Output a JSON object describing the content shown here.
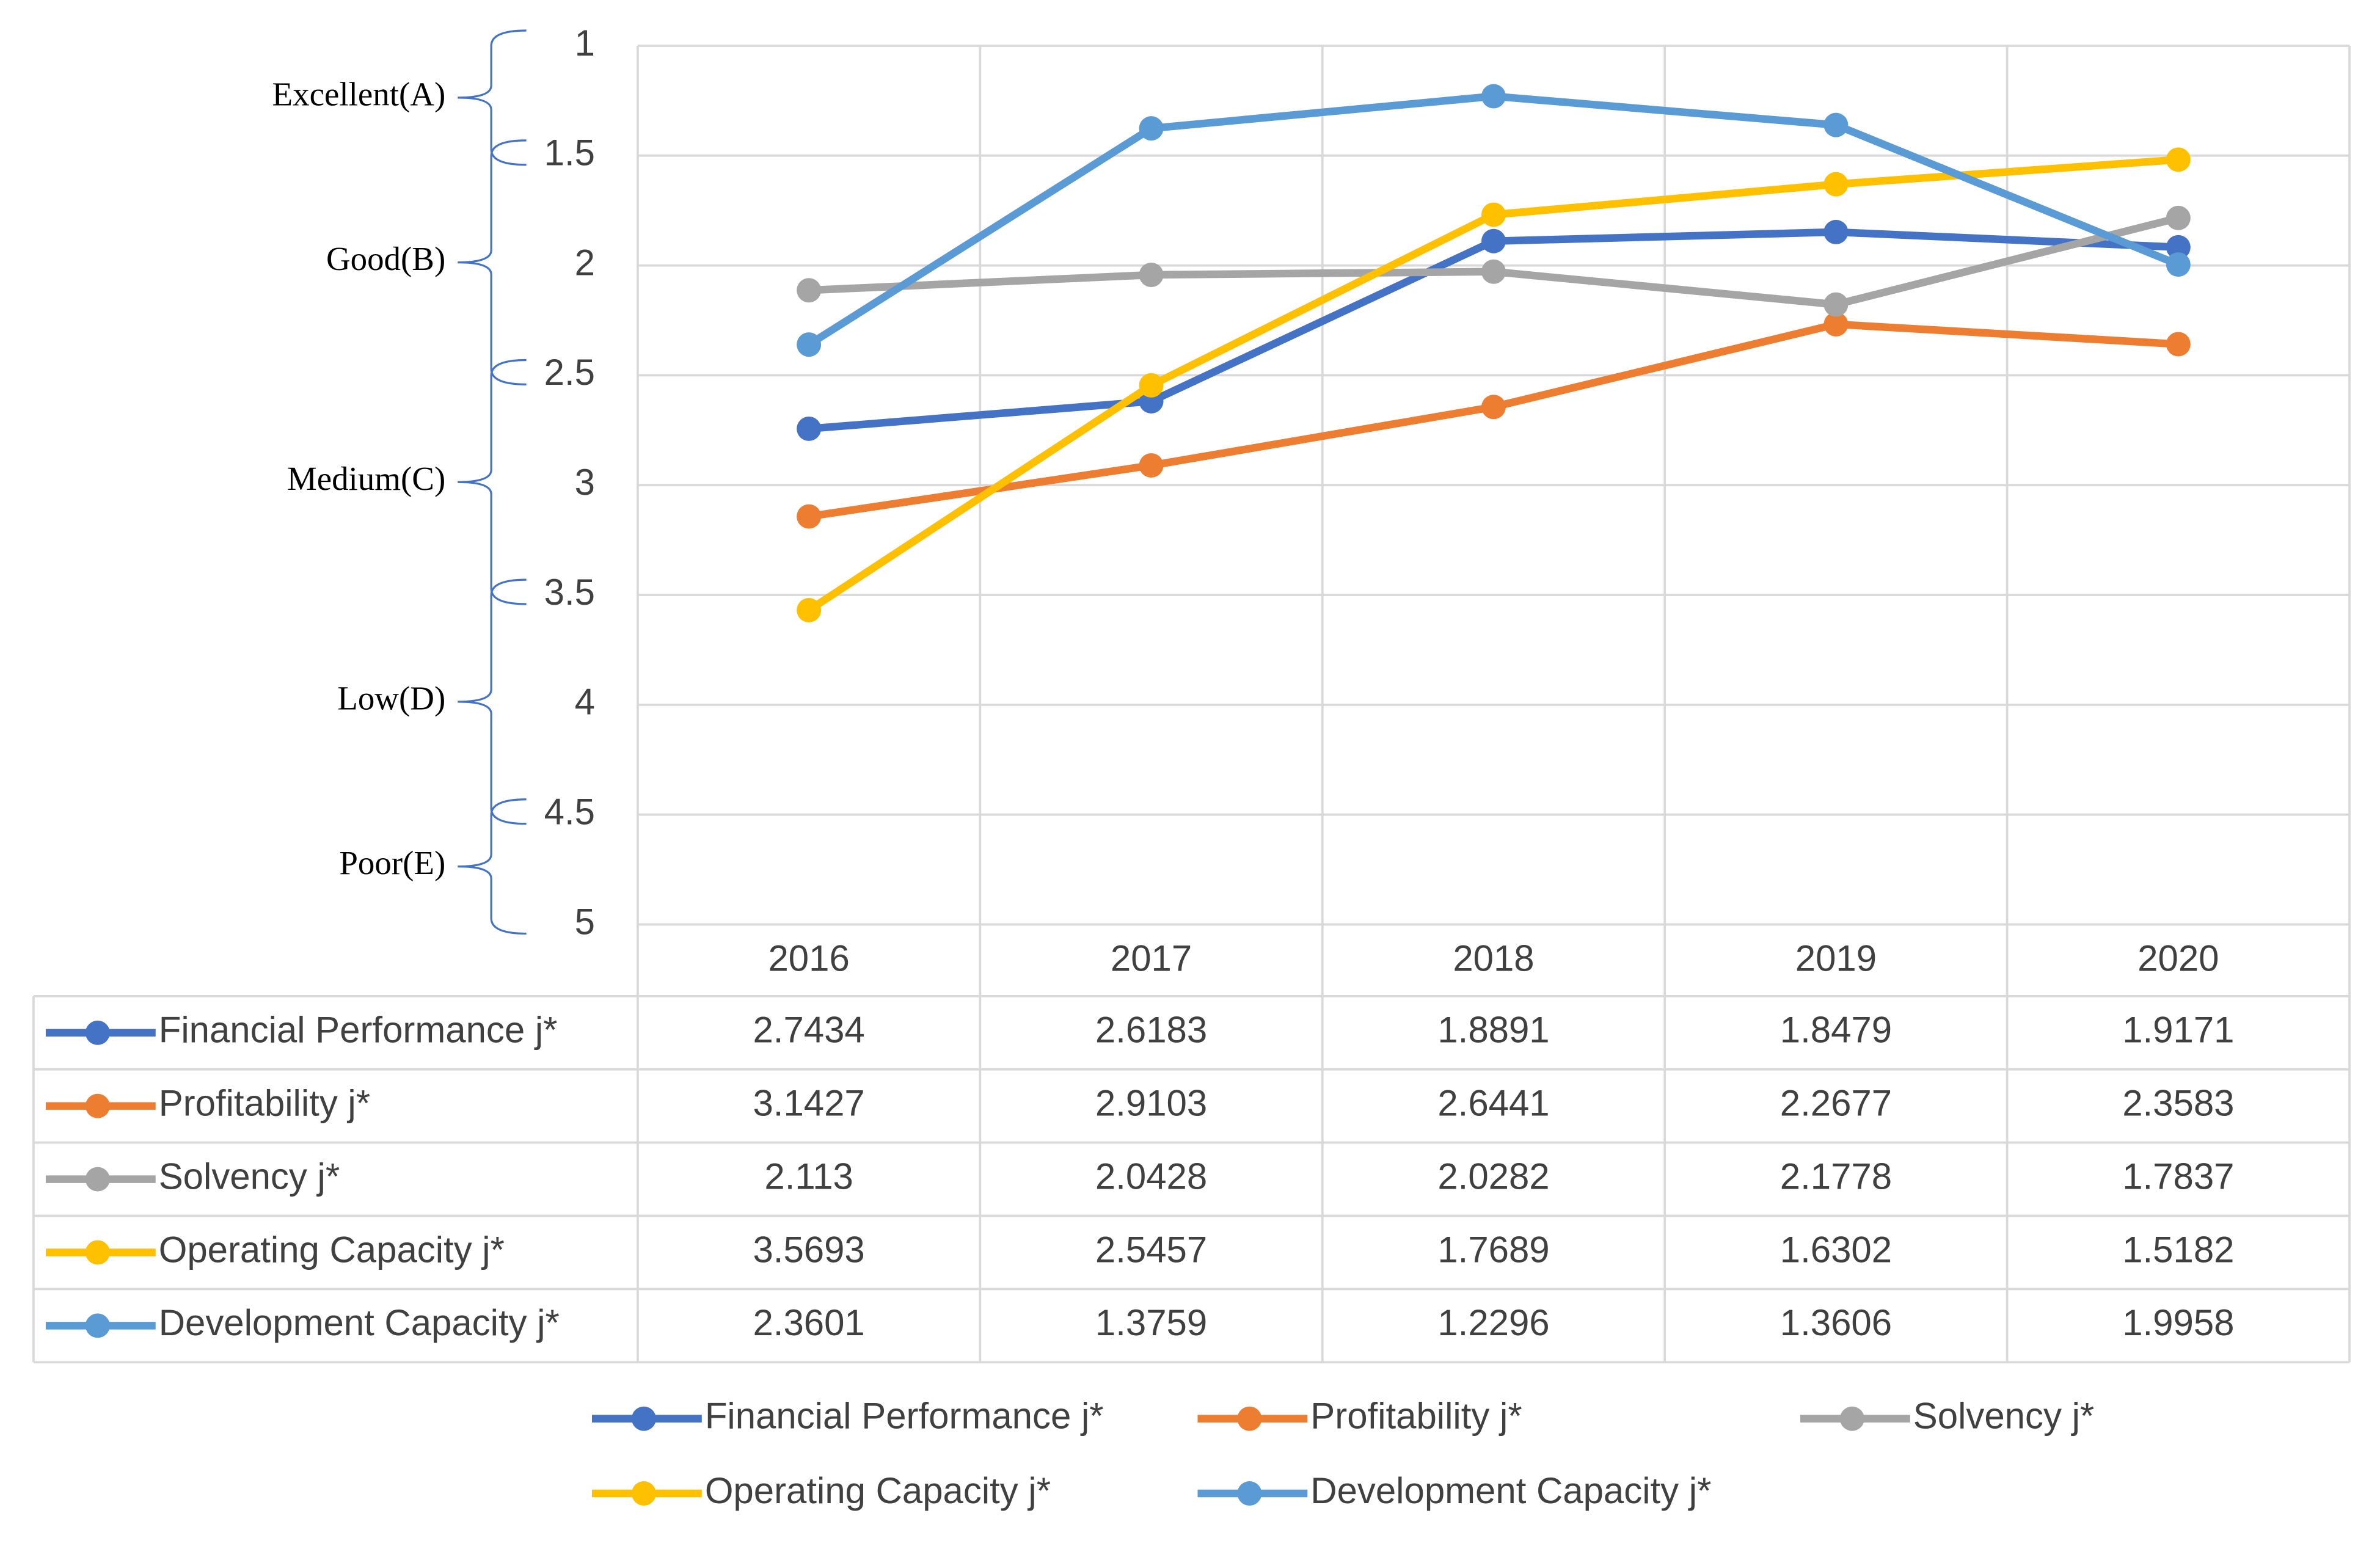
{
  "chart_data": {
    "type": "line",
    "categories": [
      "2016",
      "2017",
      "2018",
      "2019",
      "2020"
    ],
    "series": [
      {
        "name": "Financial Performance j*",
        "color": "#4472c4",
        "values": [
          2.7434,
          2.6183,
          1.8891,
          1.8479,
          1.9171
        ]
      },
      {
        "name": "Profitability j*",
        "color": "#ed7d31",
        "values": [
          3.1427,
          2.9103,
          2.6441,
          2.2677,
          2.3583
        ]
      },
      {
        "name": "Solvency j*",
        "color": "#a5a5a5",
        "values": [
          2.113,
          2.0428,
          2.0282,
          2.1778,
          1.7837
        ]
      },
      {
        "name": "Operating Capacity j*",
        "color": "#ffc000",
        "values": [
          3.5693,
          2.5457,
          1.7689,
          1.6302,
          1.5182
        ]
      },
      {
        "name": "Development Capacity j*",
        "color": "#5b9bd5",
        "values": [
          2.3601,
          1.3759,
          1.2296,
          1.3606,
          1.9958
        ]
      }
    ],
    "ylim": [
      1,
      5
    ],
    "y_inverted": true,
    "yticks": [
      1,
      1.5,
      2,
      2.5,
      3,
      3.5,
      4,
      4.5,
      5
    ],
    "grid": true,
    "data_table": true,
    "legend": "bottom",
    "grades": [
      {
        "label": "Excellent(A)",
        "range": [
          1,
          1.5
        ]
      },
      {
        "label": "Good(B)",
        "range": [
          1.5,
          2.5
        ]
      },
      {
        "label": "Medium(C)",
        "range": [
          2.5,
          3.5
        ]
      },
      {
        "label": "Low(D)",
        "range": [
          3.5,
          4.5
        ]
      },
      {
        "label": "Poor(E)",
        "range": [
          4.5,
          5
        ]
      }
    ]
  }
}
